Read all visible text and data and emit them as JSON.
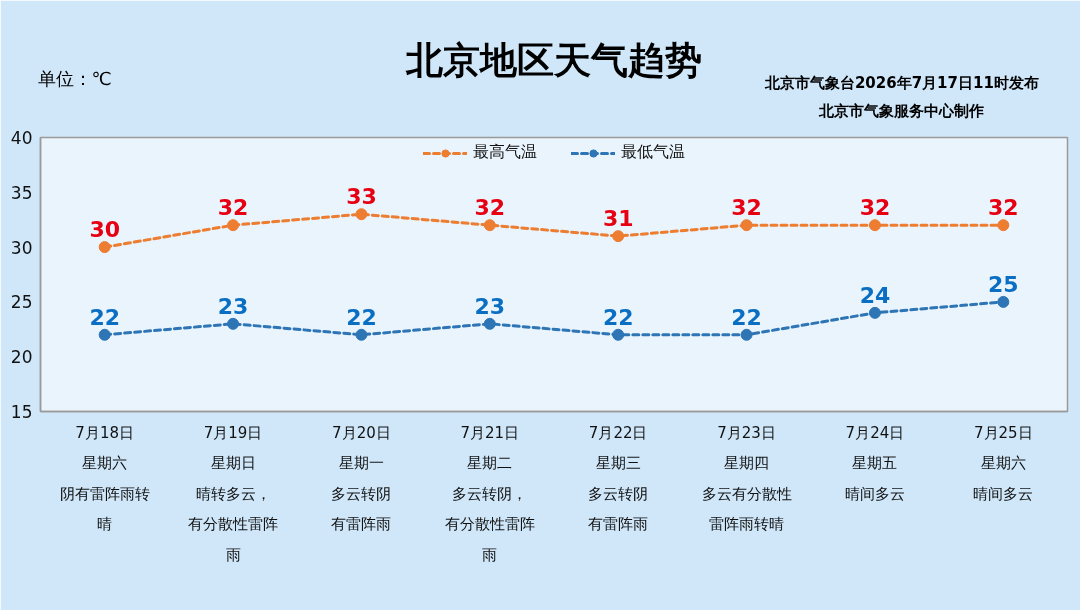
{
  "chart_data": {
    "type": "line",
    "title": "北京地区天气趋势",
    "annotations": [
      "单位：℃",
      "北京市气象台2026年7月17日11时发布",
      "北京市气象服务中心制作"
    ],
    "categories": [
      "7月18日星期六阴有雷阵雨转晴",
      "7月19日星期日晴转多云，有分散性雷阵雨",
      "7月20日星期一多云转阴有雷阵雨",
      "7月21日星期二多云转阴，有分散性雷阵雨",
      "7月22日星期三多云转阴有雷阵雨",
      "7月23日星期四多云有分散性雷阵雨转晴",
      "7月24日星期五晴间多云",
      "7月25日星期六晴间多云"
    ],
    "series": [
      {
        "name": "最高气温",
        "color": "#ed7d31",
        "values": [
          30,
          32,
          33,
          32,
          31,
          32,
          32,
          32
        ]
      },
      {
        "name": "最低气温",
        "color": "#2e75b6",
        "values": [
          22,
          23,
          22,
          23,
          22,
          22,
          24,
          25
        ]
      }
    ],
    "ylim": [
      15,
      40
    ],
    "yticks": [
      15,
      20,
      25,
      30,
      35,
      40
    ],
    "grid": false,
    "legend": "top",
    "marker": "circle",
    "line_style": "dashed",
    "data_labels": true
  }
}
